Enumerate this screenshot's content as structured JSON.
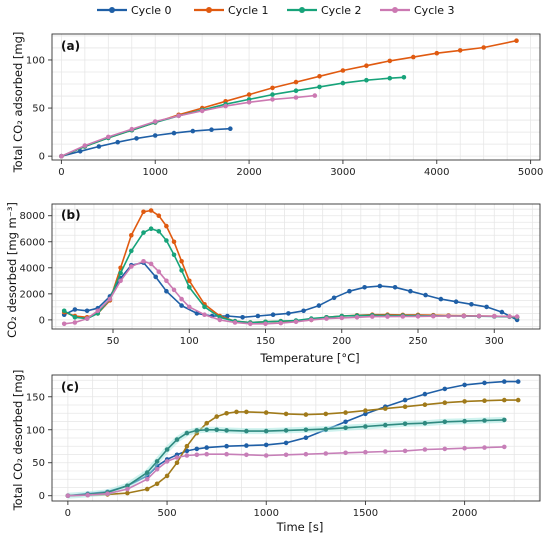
{
  "legend": {
    "placement": "top-center",
    "entries": [
      "Cycle 0",
      "Cycle 1",
      "Cycle 2",
      "Cycle 3"
    ]
  },
  "colors": {
    "Cycle 0": "#1f5fa6",
    "Cycle 1": "#e05a10",
    "Cycle 2": "#17a37a",
    "Cycle 3": "#cc79b2",
    "c_cycle1": "#a07a1a",
    "c_cycle2": "#2f8a80",
    "c_cycle3": "#c77fb8"
  },
  "chart_data": [
    {
      "type": "line",
      "panel": "(a)",
      "ylabel": "Total CO₂ adsorbed [mg]",
      "xlabel": "",
      "xlim": [
        -100,
        5100
      ],
      "ylim": [
        -4,
        127
      ],
      "xticks": [
        0,
        1000,
        2000,
        3000,
        4000,
        5000
      ],
      "xtick_labels": [
        "0",
        "1000",
        "2000",
        "3000",
        "4000",
        "5000"
      ],
      "yticks": [
        0,
        50,
        100
      ],
      "ytick_labels": [
        "0",
        "50",
        "100"
      ],
      "grid": true,
      "series": [
        {
          "name": "Cycle 0",
          "x": [
            0,
            200,
            400,
            600,
            800,
            1000,
            1200,
            1400,
            1600,
            1800
          ],
          "y": [
            0,
            5,
            10,
            14.5,
            18.5,
            21.5,
            24,
            26,
            27.5,
            28.5
          ]
        },
        {
          "name": "Cycle 1",
          "x": [
            0,
            250,
            500,
            750,
            1000,
            1250,
            1500,
            1750,
            2000,
            2250,
            2500,
            2750,
            3000,
            3250,
            3500,
            3750,
            4000,
            4250,
            4500,
            4850
          ],
          "y": [
            0,
            10,
            19,
            27,
            35,
            43,
            50,
            57,
            64,
            71,
            77,
            83,
            89,
            94,
            99,
            103,
            107,
            110,
            113,
            120
          ]
        },
        {
          "name": "Cycle 2",
          "x": [
            0,
            250,
            500,
            750,
            1000,
            1250,
            1500,
            1750,
            2000,
            2250,
            2500,
            2750,
            3000,
            3250,
            3500,
            3650
          ],
          "y": [
            0,
            10,
            19,
            27,
            35,
            42,
            48,
            54,
            59,
            64,
            68,
            72,
            76,
            79,
            81,
            82
          ]
        },
        {
          "name": "Cycle 3",
          "x": [
            0,
            250,
            500,
            750,
            1000,
            1250,
            1500,
            1750,
            2000,
            2250,
            2500,
            2700
          ],
          "y": [
            0,
            11,
            20,
            28,
            36,
            42,
            47,
            52,
            56,
            59,
            61,
            63
          ]
        }
      ]
    },
    {
      "type": "line",
      "panel": "(b)",
      "ylabel": "CO₂ desorbed [mg m⁻³]",
      "xlabel": "Temperature [°C]",
      "xlim": [
        10,
        330
      ],
      "ylim": [
        -700,
        8900
      ],
      "xticks": [
        50,
        100,
        150,
        200,
        250,
        300
      ],
      "xtick_labels": [
        "50",
        "100",
        "150",
        "200",
        "250",
        "300"
      ],
      "yticks": [
        0,
        2000,
        4000,
        6000,
        8000
      ],
      "ytick_labels": [
        "0",
        "2000",
        "4000",
        "6000",
        "8000"
      ],
      "grid": true,
      "series": [
        {
          "name": "Cycle 0",
          "x": [
            18,
            25,
            33,
            40,
            48,
            55,
            62,
            70,
            78,
            85,
            95,
            105,
            115,
            125,
            135,
            145,
            155,
            165,
            175,
            185,
            195,
            205,
            215,
            225,
            235,
            245,
            255,
            265,
            275,
            285,
            295,
            305,
            315
          ],
          "y": [
            400,
            800,
            700,
            900,
            1800,
            3200,
            4200,
            4400,
            3300,
            2200,
            1100,
            500,
            300,
            300,
            200,
            300,
            400,
            500,
            700,
            1100,
            1700,
            2200,
            2500,
            2600,
            2500,
            2200,
            1900,
            1600,
            1400,
            1200,
            1000,
            600,
            0
          ]
        },
        {
          "name": "Cycle 1",
          "x": [
            18,
            25,
            33,
            40,
            48,
            55,
            62,
            70,
            75,
            80,
            85,
            90,
            95,
            100,
            110,
            120,
            130,
            140,
            150,
            160,
            170,
            180,
            190,
            200,
            210,
            220,
            230,
            240,
            250,
            260,
            270,
            280,
            290,
            300,
            310,
            315
          ],
          "y": [
            600,
            300,
            200,
            500,
            1500,
            4000,
            6500,
            8300,
            8400,
            8000,
            7200,
            6000,
            4500,
            3000,
            1200,
            300,
            -100,
            -200,
            -150,
            -100,
            -100,
            0,
            200,
            300,
            350,
            400,
            400,
            380,
            380,
            360,
            340,
            320,
            300,
            280,
            250,
            200
          ]
        },
        {
          "name": "Cycle 2",
          "x": [
            18,
            25,
            33,
            40,
            48,
            55,
            62,
            70,
            75,
            80,
            85,
            90,
            95,
            100,
            110,
            120,
            130,
            140,
            150,
            160,
            170,
            180,
            190,
            200,
            210,
            220,
            230,
            240,
            250,
            260,
            270,
            280,
            290,
            300,
            310,
            315
          ],
          "y": [
            700,
            200,
            100,
            500,
            1600,
            3600,
            5300,
            6700,
            7000,
            6800,
            6100,
            5000,
            3800,
            2500,
            1000,
            200,
            -100,
            -200,
            -150,
            -100,
            -50,
            100,
            200,
            300,
            330,
            350,
            340,
            330,
            320,
            310,
            300,
            290,
            280,
            260,
            240,
            200
          ]
        },
        {
          "name": "Cycle 3",
          "x": [
            18,
            25,
            33,
            40,
            48,
            55,
            62,
            70,
            75,
            80,
            85,
            90,
            95,
            100,
            110,
            120,
            130,
            140,
            150,
            160,
            170,
            180,
            190,
            200,
            210,
            220,
            230,
            240,
            250,
            260,
            270,
            280,
            290,
            300,
            310,
            315
          ],
          "y": [
            -300,
            -200,
            100,
            700,
            1600,
            3000,
            4100,
            4500,
            4300,
            3700,
            3000,
            2300,
            1600,
            1000,
            400,
            0,
            -200,
            -300,
            -300,
            -250,
            -150,
            0,
            100,
            150,
            200,
            250,
            250,
            260,
            270,
            280,
            290,
            300,
            300,
            280,
            260,
            250
          ]
        }
      ]
    },
    {
      "type": "line",
      "panel": "(c)",
      "ylabel": "Total CO₂ desorbed [mg]",
      "xlabel": "Time [s]",
      "xlim": [
        -80,
        2380
      ],
      "ylim": [
        -8,
        183
      ],
      "xticks": [
        0,
        500,
        1000,
        1500,
        2000
      ],
      "xtick_labels": [
        "0",
        "500",
        "1000",
        "1500",
        "2000"
      ],
      "yticks": [
        0,
        50,
        100,
        150
      ],
      "ytick_labels": [
        "0",
        "50",
        "100",
        "150"
      ],
      "grid": true,
      "series": [
        {
          "name": "Cycle 0",
          "x": [
            0,
            100,
            200,
            300,
            400,
            450,
            500,
            550,
            600,
            650,
            700,
            800,
            900,
            1000,
            1100,
            1200,
            1300,
            1400,
            1500,
            1600,
            1700,
            1800,
            1900,
            2000,
            2100,
            2200,
            2270
          ],
          "y": [
            0,
            3,
            6,
            15,
            30,
            45,
            55,
            62,
            68,
            71,
            73,
            75,
            76,
            77,
            80,
            88,
            100,
            112,
            124,
            135,
            145,
            154,
            162,
            168,
            171,
            173,
            173
          ]
        },
        {
          "name": "Cycle 1",
          "x": [
            0,
            100,
            200,
            300,
            400,
            450,
            500,
            550,
            600,
            650,
            700,
            750,
            800,
            850,
            900,
            1000,
            1100,
            1200,
            1300,
            1400,
            1500,
            1600,
            1700,
            1800,
            1900,
            2000,
            2100,
            2200,
            2270
          ],
          "y": [
            0,
            1,
            2,
            4,
            10,
            18,
            30,
            50,
            75,
            95,
            110,
            120,
            125,
            127,
            127,
            126,
            124,
            123,
            124,
            126,
            129,
            132,
            135,
            138,
            141,
            143,
            144,
            145,
            145
          ]
        },
        {
          "name": "Cycle 2",
          "x": [
            0,
            100,
            200,
            300,
            400,
            450,
            500,
            550,
            600,
            650,
            700,
            750,
            800,
            900,
            1000,
            1100,
            1200,
            1300,
            1400,
            1500,
            1600,
            1700,
            1800,
            1900,
            2000,
            2100,
            2200
          ],
          "y": [
            0,
            2,
            5,
            15,
            35,
            52,
            70,
            85,
            95,
            99,
            100,
            100,
            99,
            98,
            98,
            99,
            100,
            101,
            103,
            105,
            107,
            109,
            110,
            112,
            113,
            114,
            115
          ]
        },
        {
          "name": "Cycle 3",
          "x": [
            0,
            100,
            200,
            300,
            400,
            450,
            500,
            550,
            600,
            650,
            700,
            800,
            900,
            1000,
            1100,
            1200,
            1300,
            1400,
            1500,
            1600,
            1700,
            1800,
            1900,
            2000,
            2100,
            2200
          ],
          "y": [
            0,
            1,
            3,
            10,
            25,
            40,
            52,
            58,
            61,
            62,
            63,
            63,
            62,
            61,
            62,
            63,
            64,
            65,
            66,
            67,
            68,
            70,
            71,
            72,
            73,
            74
          ]
        }
      ]
    }
  ]
}
